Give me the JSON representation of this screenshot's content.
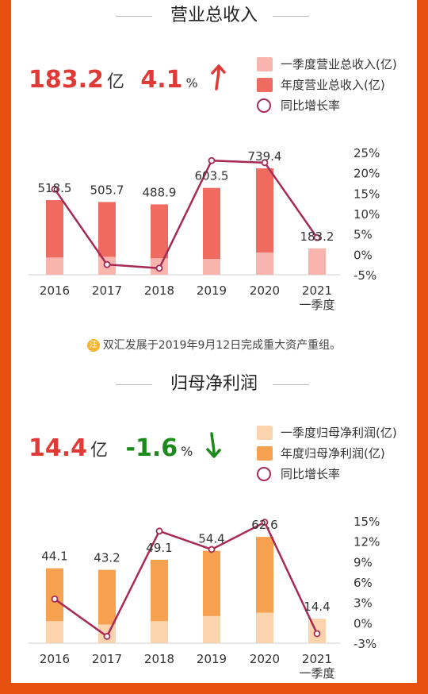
{
  "revenue": {
    "title": "营业总收入",
    "headline_value": "183.2",
    "headline_unit": "亿",
    "headline_growth": "4.1",
    "headline_growth_unit": "%",
    "legend": [
      "一季度营业总收入(亿)",
      "年度营业总收入(亿)",
      "同比增长率"
    ],
    "note_badge": "注",
    "note": "双汇发展于2019年9月12日完成重大资产重组。"
  },
  "profit": {
    "title": "归母净利润",
    "headline_value": "14.4",
    "headline_unit": "亿",
    "headline_growth": "-1.6",
    "headline_growth_unit": "%",
    "legend": [
      "一季度归母净利润(亿)",
      "年度归母净利润(亿)",
      "同比增长率"
    ]
  },
  "colors": {
    "rev_annual": "#ef6a5f",
    "rev_q1": "#f8b5ad",
    "profit_annual": "#f5a150",
    "profit_q1": "#fbd3ad",
    "growth_line": "#a62a55",
    "up_arrow": "#e03a36",
    "down_arrow": "#1b8a1b"
  },
  "chart_data": [
    {
      "type": "bar",
      "categories": [
        "2016",
        "2017",
        "2018",
        "2019",
        "2020",
        "2021\n一季度"
      ],
      "series": [
        {
          "name": "年度营业总收入(亿)",
          "values": [
            518.5,
            505.7,
            488.9,
            603.5,
            739.4,
            null
          ]
        },
        {
          "name": "一季度营业总收入(亿)",
          "values": [
            120,
            125,
            115,
            110,
            155,
            183.2
          ]
        },
        {
          "name": "同比增长率",
          "axis": "right",
          "type": "line",
          "values": [
            16,
            -2.5,
            -3.4,
            23,
            22.5,
            4.1
          ]
        }
      ],
      "bar_labels": [
        "518.5",
        "505.7",
        "488.9",
        "603.5",
        "739.4",
        "183.2"
      ],
      "left_ylim": [
        0,
        850
      ],
      "right_ylim": [
        -5,
        25
      ],
      "right_ticks": [
        "25%",
        "20%",
        "15%",
        "10%",
        "5%",
        "0%",
        "-5%"
      ],
      "right_tick_values": [
        25,
        20,
        15,
        10,
        5,
        0,
        -5
      ]
    },
    {
      "type": "bar",
      "categories": [
        "2016",
        "2017",
        "2018",
        "2019",
        "2020",
        "2021\n一季度"
      ],
      "series": [
        {
          "name": "年度归母净利润(亿)",
          "values": [
            44.1,
            43.2,
            49.1,
            54.4,
            62.6,
            null
          ]
        },
        {
          "name": "一季度归母净利润(亿)",
          "values": [
            13,
            11,
            13,
            16,
            18,
            14.4
          ]
        },
        {
          "name": "同比增长率",
          "axis": "right",
          "type": "line",
          "values": [
            3.5,
            -2,
            13.5,
            10.8,
            14.8,
            -1.6
          ]
        }
      ],
      "bar_labels": [
        "44.1",
        "43.2",
        "49.1",
        "54.4",
        "62.6",
        "14.4"
      ],
      "left_ylim": [
        0,
        72
      ],
      "right_ylim": [
        -3,
        15
      ],
      "right_ticks": [
        "15%",
        "12%",
        "9%",
        "6%",
        "3%",
        "0%",
        "-3%"
      ],
      "right_tick_values": [
        15,
        12,
        9,
        6,
        3,
        0,
        -3
      ]
    }
  ]
}
